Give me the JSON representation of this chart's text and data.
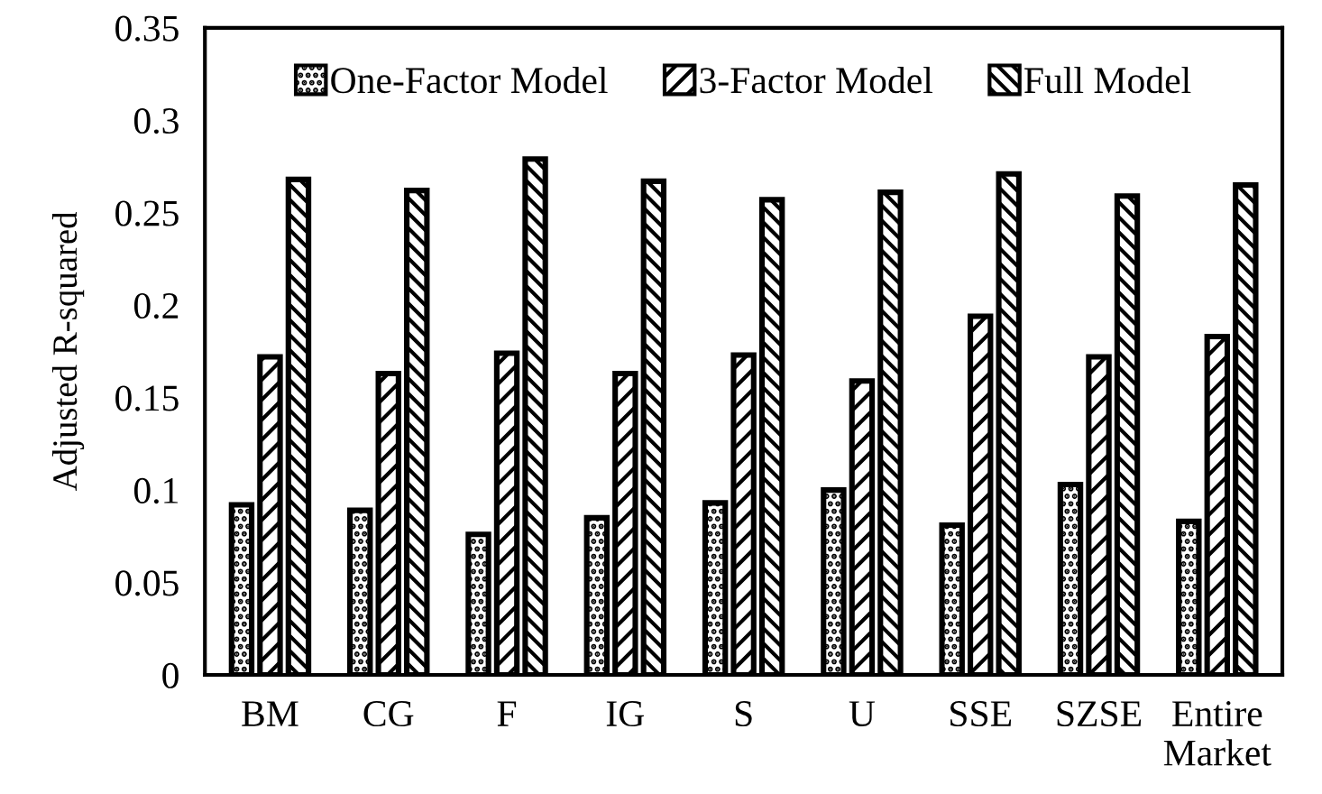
{
  "chart_data": {
    "type": "bar",
    "ylabel": "Adjusted R-squared",
    "categories": [
      "BM",
      "CG",
      "F",
      "IG",
      "S",
      "U",
      "SSE",
      "SZSE",
      "Entire\nMarket"
    ],
    "series": [
      {
        "name": "One-Factor Model",
        "color": "#000000",
        "values": [
          0.092,
          0.089,
          0.076,
          0.085,
          0.093,
          0.1,
          0.081,
          0.103,
          0.083
        ]
      },
      {
        "name": "3-Factor Model",
        "color": "#000000",
        "values": [
          0.172,
          0.163,
          0.174,
          0.163,
          0.173,
          0.159,
          0.194,
          0.172,
          0.183
        ]
      },
      {
        "name": "Full Model",
        "color": "#000000",
        "values": [
          0.268,
          0.262,
          0.279,
          0.267,
          0.257,
          0.261,
          0.271,
          0.259,
          0.265
        ]
      }
    ],
    "ylim": [
      0,
      0.35
    ],
    "yticks": [
      {
        "value": 0,
        "label": "0"
      },
      0.05,
      {
        "value": 0.1,
        "label": "0.1"
      },
      0.15,
      {
        "value": 0.2,
        "label": "0.2"
      },
      0.25,
      {
        "value": 0.3,
        "label": "0.3"
      },
      0.35
    ],
    "grid": false,
    "legend": "top"
  }
}
